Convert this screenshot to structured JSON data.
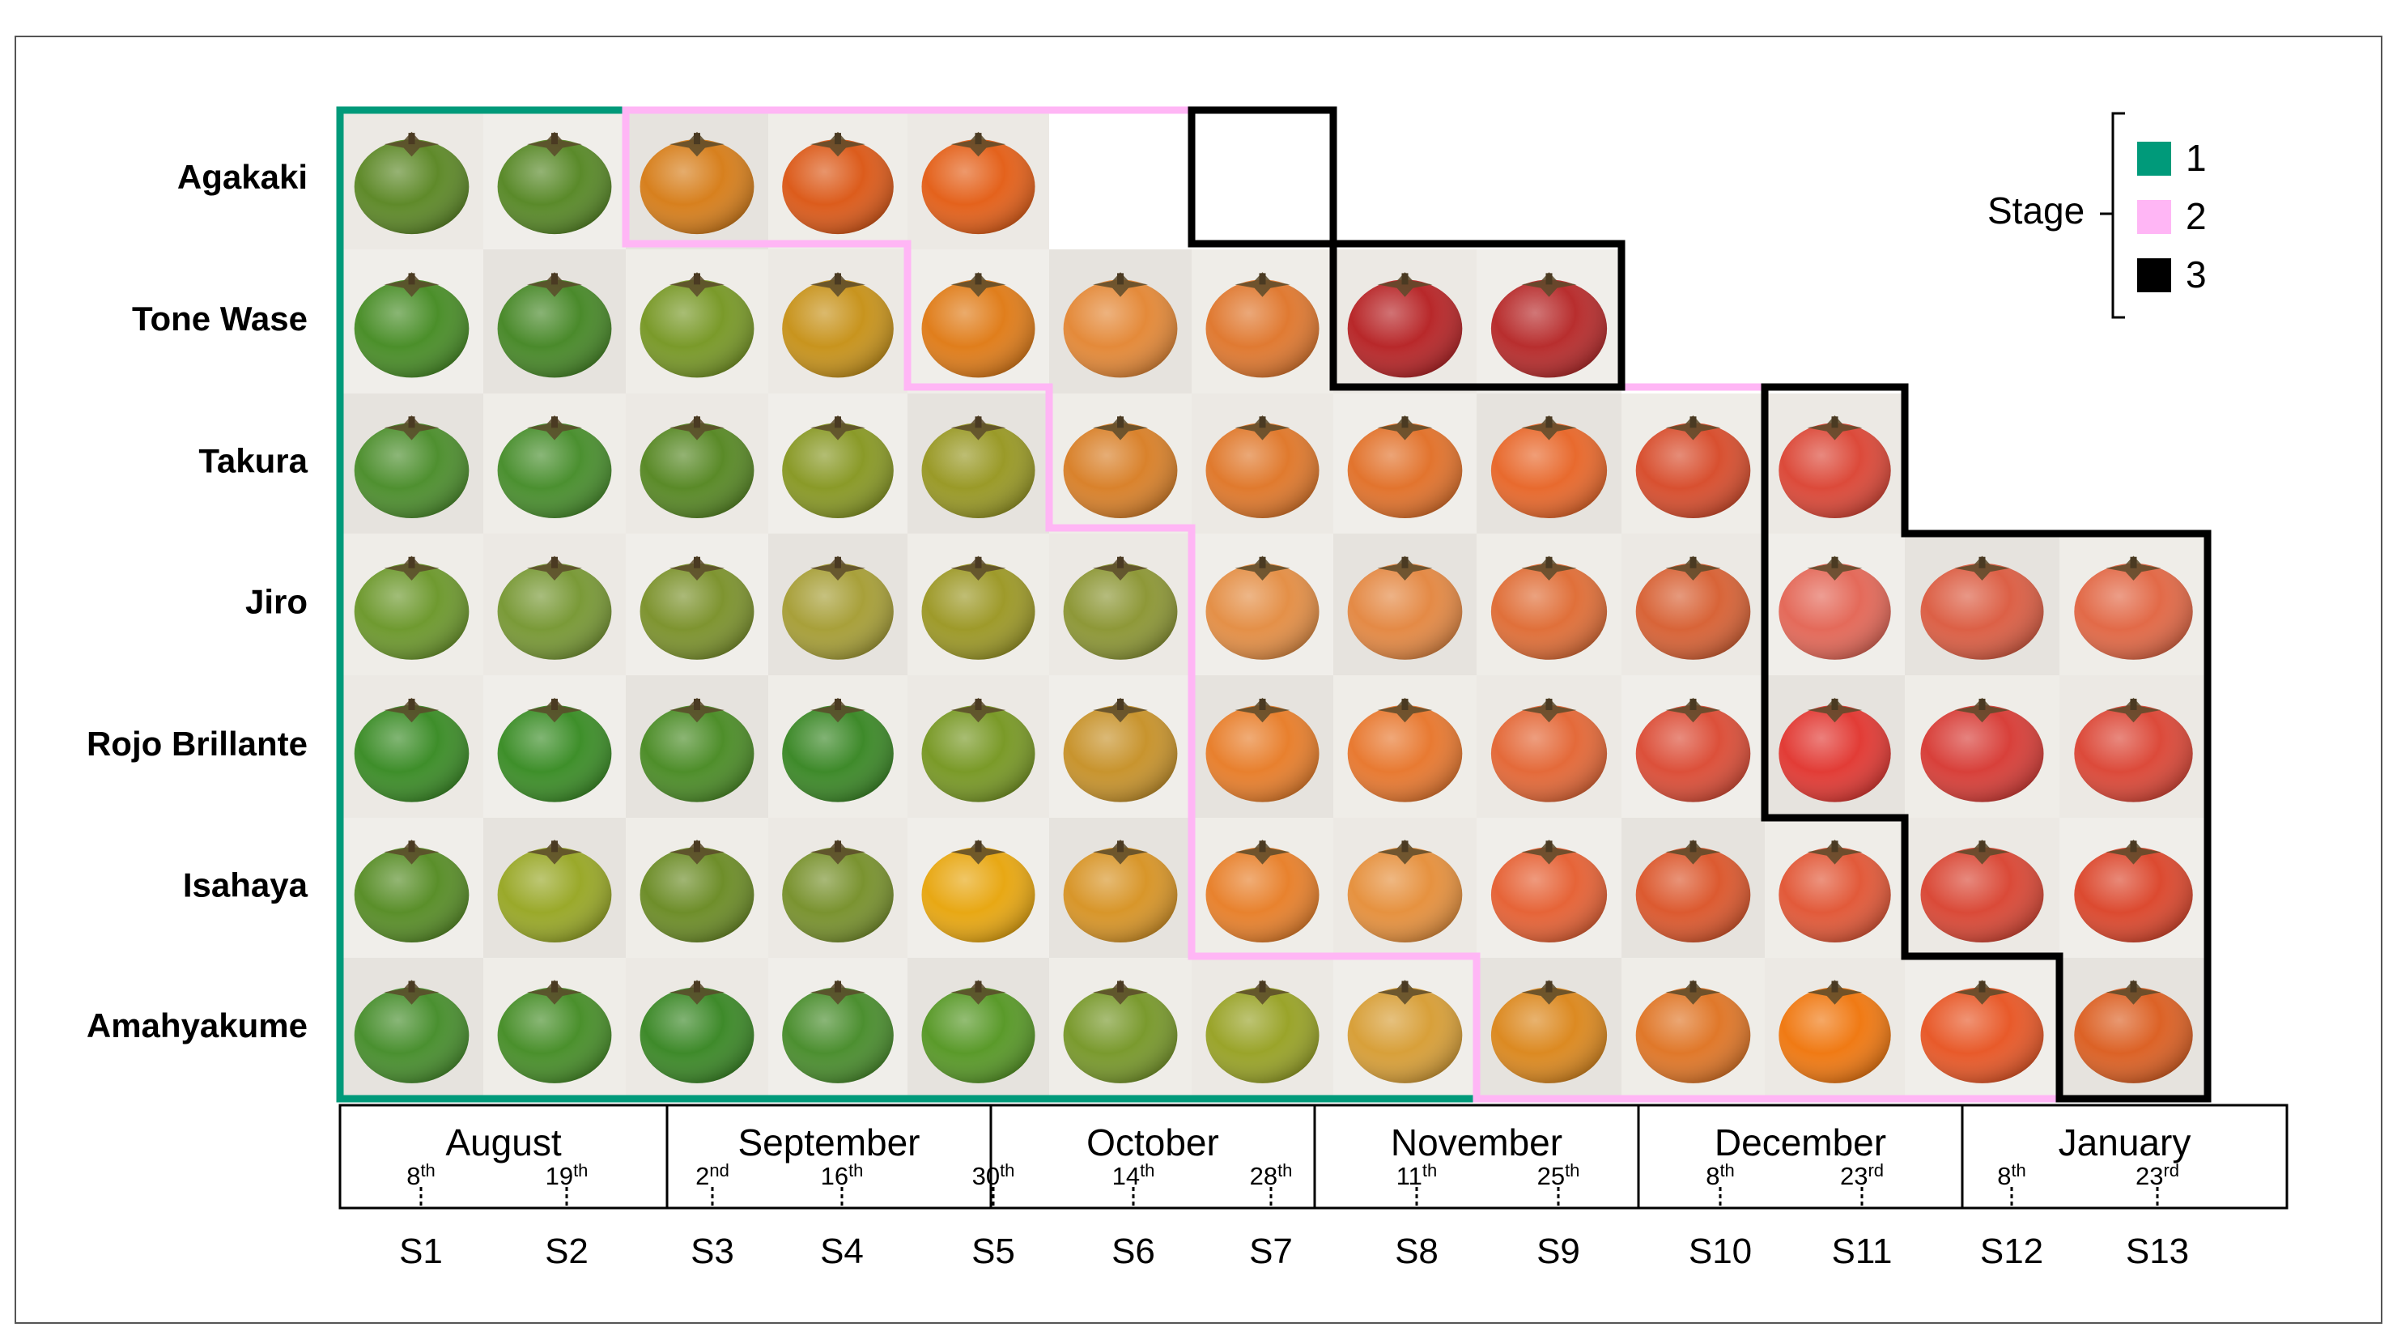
{
  "varieties": [
    "Agakaki",
    "Tone Wase",
    "Takura",
    "Jiro",
    "Rojo Brillante",
    "Isahaya",
    "Amahyakume"
  ],
  "months": [
    {
      "name": "August",
      "days": [
        {
          "num": "8",
          "suf": "th"
        },
        {
          "num": "19",
          "suf": "th"
        }
      ]
    },
    {
      "name": "September",
      "days": [
        {
          "num": "2",
          "suf": "nd"
        },
        {
          "num": "16",
          "suf": "th"
        }
      ]
    },
    {
      "name": "October",
      "days": [
        {
          "num": "30",
          "suf": "th"
        },
        {
          "num": "14",
          "suf": "th"
        },
        {
          "num": "28",
          "suf": "th"
        }
      ]
    },
    {
      "name": "November",
      "days": [
        {
          "num": "11",
          "suf": "th"
        },
        {
          "num": "25",
          "suf": "th"
        }
      ]
    },
    {
      "name": "December",
      "days": [
        {
          "num": "8",
          "suf": "th"
        },
        {
          "num": "23",
          "suf": "rd"
        }
      ]
    },
    {
      "name": "January",
      "days": [
        {
          "num": "8",
          "suf": "th"
        },
        {
          "num": "23",
          "suf": "rd"
        }
      ]
    }
  ],
  "sample_codes": [
    "S1",
    "S2",
    "S3",
    "S4",
    "S5",
    "S6",
    "S7",
    "S8",
    "S9",
    "S10",
    "S11",
    "S12",
    "S13"
  ],
  "legend": {
    "title": "Stage",
    "items": [
      {
        "label": "1",
        "color": "#009a7a"
      },
      {
        "label": "2",
        "color": "#ffb6f5"
      },
      {
        "label": "3",
        "color": "#000000"
      }
    ]
  },
  "photo_counts": [
    5,
    9,
    11,
    13,
    13,
    13,
    13
  ],
  "stage_by_variety": [
    [
      1,
      1,
      2,
      2,
      2,
      2,
      3
    ],
    [
      1,
      1,
      1,
      1,
      2,
      2,
      2,
      3,
      3
    ],
    [
      1,
      1,
      1,
      1,
      1,
      2,
      2,
      2,
      2,
      2,
      3
    ],
    [
      1,
      1,
      1,
      1,
      1,
      1,
      2,
      2,
      2,
      2,
      3,
      3,
      3
    ],
    [
      1,
      1,
      1,
      1,
      1,
      1,
      2,
      2,
      2,
      2,
      3,
      3,
      3
    ],
    [
      1,
      1,
      1,
      1,
      1,
      1,
      2,
      2,
      2,
      2,
      2,
      3,
      3
    ],
    [
      1,
      1,
      1,
      1,
      1,
      1,
      1,
      1,
      2,
      2,
      2,
      2,
      3
    ]
  ],
  "fruit_colors": [
    [
      "#5f8a2a",
      "#5a8a2a",
      "#d7801e",
      "#dc5c1c",
      "#e4621c",
      "#e05a1c",
      "#d2401c"
    ],
    [
      "#4b8f2a",
      "#4a8a2b",
      "#7a9a2a",
      "#c8941e",
      "#e07e1c",
      "#e48a3a",
      "#e07a32",
      "#b8282a",
      "#b82e2e"
    ],
    [
      "#4f9030",
      "#4b9030",
      "#5a8a28",
      "#8a9a28",
      "#9a9a28",
      "#d9822c",
      "#e07a2e",
      "#e2742e",
      "#e86a2e",
      "#d85030",
      "#dc4a3a"
    ],
    [
      "#6f9a30",
      "#7a9a38",
      "#7e9430",
      "#a8a03a",
      "#9e9a2a",
      "#8e9838",
      "#e49048",
      "#e48a46",
      "#e0703a",
      "#d86438",
      "#e46a5a",
      "#dc6046",
      "#e26a48"
    ],
    [
      "#3e8e2a",
      "#3e8f2a",
      "#4e8e2a",
      "#3e8a2a",
      "#7a9a28",
      "#c8942e",
      "#e8802e",
      "#e87a32",
      "#e46a3a",
      "#dc503a",
      "#e23c36",
      "#d8403a",
      "#dc4a3a"
    ],
    [
      "#5a8f2a",
      "#9aa92a",
      "#6e8e2a",
      "#7a9330",
      "#e8a814",
      "#d8962a",
      "#e8822e",
      "#e69240",
      "#e66438",
      "#dc5a30",
      "#e25a3a",
      "#da4a38",
      "#dc4a30"
    ],
    [
      "#4a9030",
      "#4a902c",
      "#3e8a2a",
      "#4c8f30",
      "#5a9a2a",
      "#7a9a2e",
      "#9aa42a",
      "#d8a03a",
      "#dc8a22",
      "#e0782a",
      "#f07a14",
      "#e85a2a",
      "#dc6226"
    ]
  ]
}
